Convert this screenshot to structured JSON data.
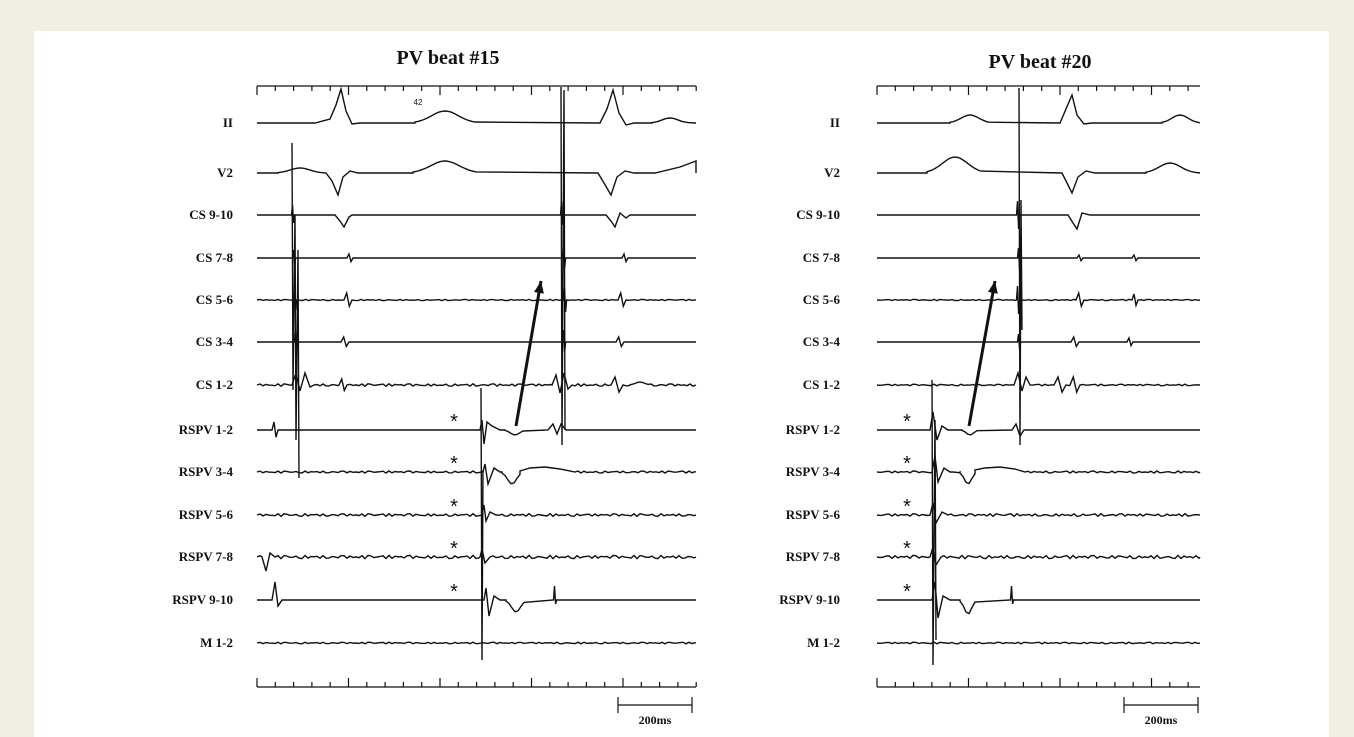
{
  "panels": [
    {
      "title": "PV beat  #15",
      "beat_number_label": "42",
      "scale_label": "200ms"
    },
    {
      "title": "PV beat  #20",
      "scale_label": "200ms"
    }
  ],
  "channels": [
    "II",
    "V2",
    "CS 9-10",
    "CS 7-8",
    "CS 5-6",
    "CS 3-4",
    "CS 1-2",
    "RSPV 1-2",
    "RSPV 3-4",
    "RSPV 5-6",
    "RSPV 7-8",
    "RSPV 9-10",
    "M 1-2"
  ],
  "marker": "*"
}
